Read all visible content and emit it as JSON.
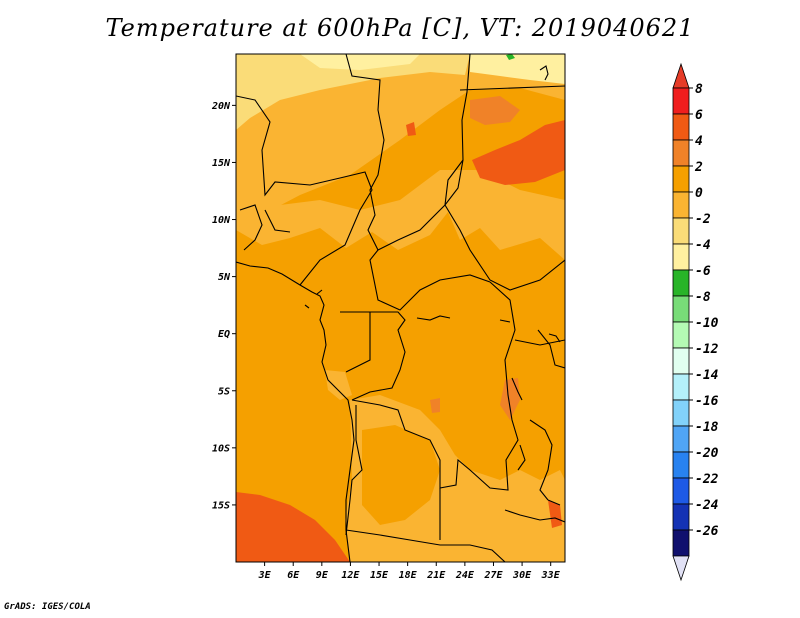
{
  "title": "Temperature at 600hPa [C], VT: 2019040621",
  "footer": "GrADS: IGES/COLA",
  "map": {
    "lat_labels": [
      "20N",
      "15N",
      "10N",
      "5N",
      "EQ",
      "5S",
      "10S",
      "15S"
    ],
    "lat_values": [
      20,
      15,
      10,
      5,
      0,
      -5,
      -10,
      -15
    ],
    "lon_labels": [
      "3E",
      "6E",
      "9E",
      "12E",
      "15E",
      "18E",
      "21E",
      "24E",
      "27E",
      "30E",
      "33E"
    ],
    "lon_values": [
      3,
      6,
      9,
      12,
      15,
      18,
      21,
      24,
      27,
      30,
      33
    ],
    "lat_range": [
      -20,
      24.5
    ],
    "lon_range": [
      0,
      34.5
    ],
    "field_colors": {
      "6_8": "#fa3c3c",
      "4_6": "#f05a14",
      "2_4": "#f5a000",
      "0_2": "#fab432",
      "neg2_0": "#fadc78",
      "neg4_neg2": "#fff0a0",
      "neg6_neg4": "#28b428"
    }
  },
  "colorbar": {
    "labels": [
      "8",
      "6",
      "4",
      "2",
      "0",
      "-2",
      "-4",
      "-6",
      "-8",
      "-10",
      "-12",
      "-14",
      "-16",
      "-18",
      "-20",
      "-22",
      "-24",
      "-26"
    ],
    "colors": [
      "#f01e1e",
      "#f05a14",
      "#f08228",
      "#f5a000",
      "#fab432",
      "#fadc78",
      "#fff0a0",
      "#28b428",
      "#78dc78",
      "#b4fab4",
      "#e1fff0",
      "#b4f0fa",
      "#82d2fa",
      "#50a5f5",
      "#2882f0",
      "#1e5ae6",
      "#1432b4",
      "#10106e"
    ],
    "top_color": "#e63c28",
    "bottom_color": "#e1e1f5"
  }
}
